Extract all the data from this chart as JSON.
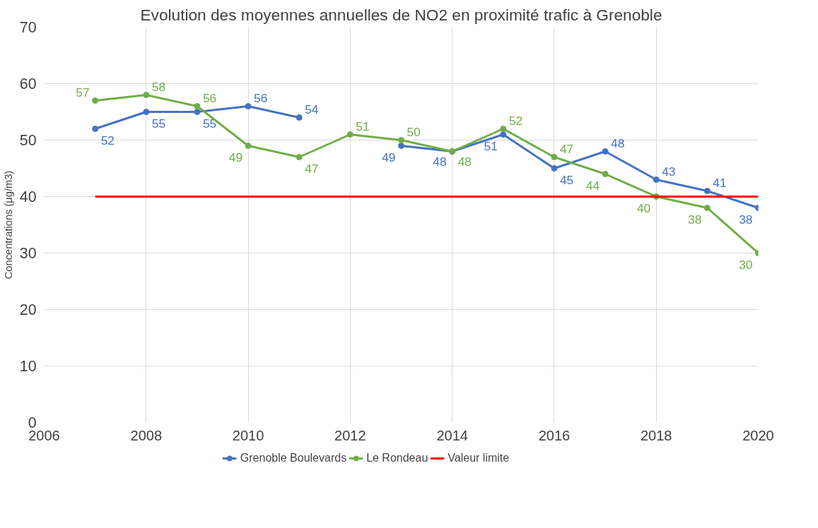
{
  "chart_data": {
    "type": "line",
    "title": "Evolution des moyennes annuelles de NO2 en proximité trafic à Grenoble",
    "ylabel": "Concentrations (µg/m3)",
    "x": [
      2007,
      2008,
      2009,
      2010,
      2011,
      2012,
      2013,
      2014,
      2015,
      2016,
      2017,
      2018,
      2019,
      2020
    ],
    "series": [
      {
        "name": "Grenoble Boulevards",
        "color": "#4472c4",
        "marker": "circle",
        "values": [
          52,
          55,
          55,
          56,
          54,
          null,
          49,
          48,
          51,
          45,
          48,
          43,
          41,
          38
        ],
        "value_labels": [
          "52",
          "55",
          "55",
          "56",
          "54",
          null,
          "49",
          "48",
          "51",
          "45",
          "48",
          "43",
          "41",
          "38"
        ]
      },
      {
        "name": "Le Rondeau",
        "color": "#70ad47",
        "marker": "circle",
        "values": [
          57,
          58,
          56,
          49,
          47,
          51,
          50,
          48,
          52,
          47,
          44,
          40,
          38,
          30
        ],
        "value_labels": [
          "57",
          "58",
          "56",
          "49",
          "47",
          "51",
          "50",
          "48",
          "52",
          "47",
          "44",
          "40",
          "38",
          "30"
        ]
      },
      {
        "name": "Valeur limite",
        "color": "#ff0000",
        "marker": "none",
        "values": [
          40,
          40,
          40,
          40,
          40,
          40,
          40,
          40,
          40,
          40,
          40,
          40,
          40,
          40
        ]
      }
    ],
    "xlim": [
      2006,
      2020
    ],
    "xticks": [
      2006,
      2008,
      2010,
      2012,
      2014,
      2016,
      2018,
      2020
    ],
    "ylim": [
      0,
      70
    ],
    "yticks": [
      0,
      10,
      20,
      30,
      40,
      50,
      60,
      70
    ],
    "grid": true,
    "legend": "bottom"
  }
}
